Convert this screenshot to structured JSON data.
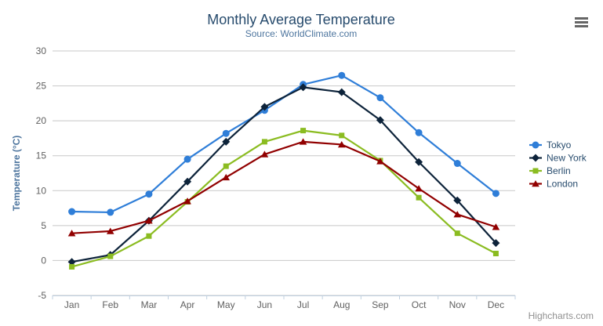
{
  "chart_data": {
    "type": "line",
    "title": "Monthly Average Temperature",
    "subtitle": "Source: WorldClimate.com",
    "xlabel": "",
    "ylabel": "Temperature (°C)",
    "ylim": [
      -5,
      30
    ],
    "y_ticks": [
      -5,
      0,
      5,
      10,
      15,
      20,
      25,
      30
    ],
    "grid": true,
    "legend_position": "right",
    "categories": [
      "Jan",
      "Feb",
      "Mar",
      "Apr",
      "May",
      "Jun",
      "Jul",
      "Aug",
      "Sep",
      "Oct",
      "Nov",
      "Dec"
    ],
    "series": [
      {
        "name": "Tokyo",
        "color": "#2f7ed8",
        "marker": "circle",
        "values": [
          7.0,
          6.9,
          9.5,
          14.5,
          18.2,
          21.5,
          25.2,
          26.5,
          23.3,
          18.3,
          13.9,
          9.6
        ]
      },
      {
        "name": "New York",
        "color": "#0d233a",
        "marker": "diamond",
        "values": [
          -0.2,
          0.8,
          5.7,
          11.3,
          17.0,
          22.0,
          24.8,
          24.1,
          20.1,
          14.1,
          8.6,
          2.5
        ]
      },
      {
        "name": "Berlin",
        "color": "#8bbc21",
        "marker": "square",
        "values": [
          -0.9,
          0.6,
          3.5,
          8.4,
          13.5,
          17.0,
          18.6,
          17.9,
          14.3,
          9.0,
          3.9,
          1.0
        ]
      },
      {
        "name": "London",
        "color": "#910000",
        "marker": "triangle",
        "values": [
          3.9,
          4.2,
          5.7,
          8.5,
          11.9,
          15.2,
          17.0,
          16.6,
          14.2,
          10.3,
          6.6,
          4.8
        ]
      }
    ]
  },
  "credit": {
    "label": "Highcharts.com"
  },
  "export_menu": {
    "icon": "hamburger-icon"
  },
  "theme": {
    "title_color": "#274b6d",
    "subtitle_color": "#4d759e",
    "axis_title_color": "#4d759e",
    "tick_label_color": "#606060",
    "legend_text_color": "#274b6d",
    "gridline_color": "#c8c8c8",
    "axis_line_color": "#c0d0e0",
    "credit_color": "#909090",
    "export_icon_color": "#666666",
    "background_color": "#ffffff"
  }
}
